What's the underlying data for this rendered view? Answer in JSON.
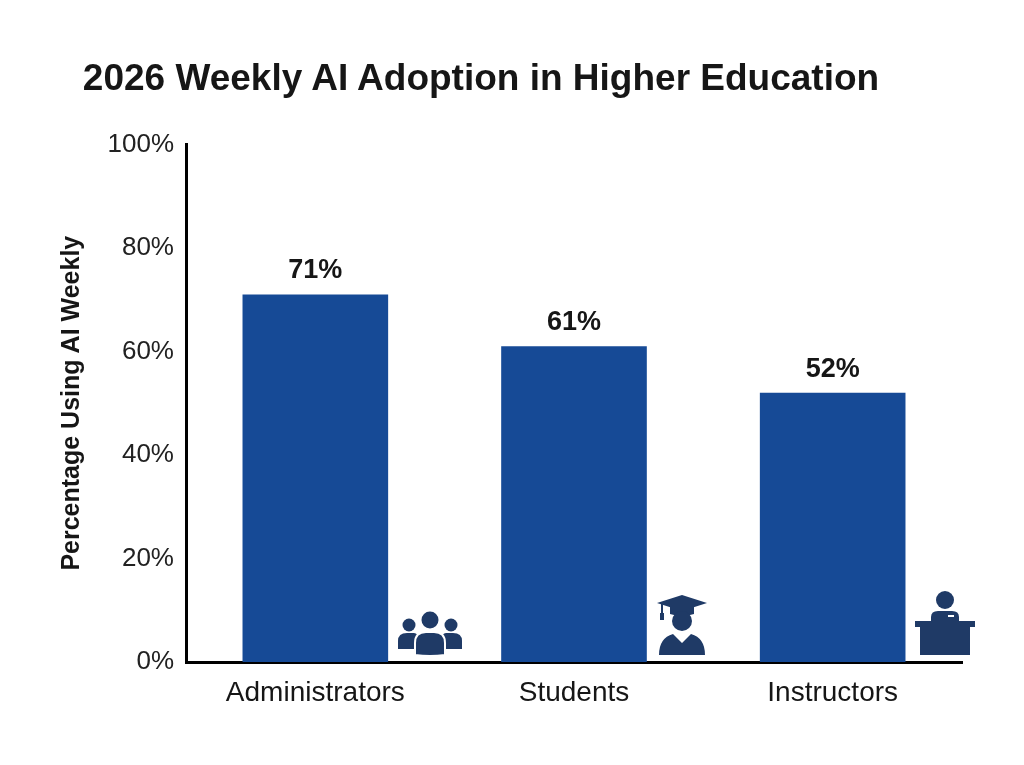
{
  "chart_data": {
    "type": "bar",
    "title": "2026 Weekly AI Adoption in Higher Education",
    "ylabel": "Percentage Using AI Weekly",
    "categories": [
      "Administrators",
      "Students",
      "Instructors"
    ],
    "values": [
      71,
      61,
      52
    ],
    "value_labels": [
      "71%",
      "61%",
      "52%"
    ],
    "color": "#164a96",
    "ylim": [
      0,
      100
    ],
    "yticks": [
      {
        "value": 0,
        "label": "0%"
      },
      {
        "value": 20,
        "label": "20%"
      },
      {
        "value": 40,
        "label": "40%"
      },
      {
        "value": 60,
        "label": "60%"
      },
      {
        "value": 80,
        "label": "80%"
      },
      {
        "value": 100,
        "label": "100%"
      }
    ],
    "grid": false,
    "legend": false
  }
}
